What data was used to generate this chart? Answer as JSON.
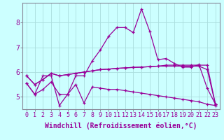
{
  "x_labels": [
    0,
    1,
    2,
    3,
    4,
    5,
    6,
    7,
    8,
    9,
    10,
    11,
    12,
    13,
    14,
    15,
    16,
    17,
    18,
    19,
    20,
    21,
    22,
    23
  ],
  "line1": [
    5.55,
    5.1,
    5.85,
    5.85,
    4.65,
    5.1,
    5.85,
    5.85,
    6.45,
    6.9,
    7.45,
    7.8,
    7.8,
    7.6,
    8.55,
    7.65,
    6.5,
    6.55,
    6.35,
    6.2,
    6.2,
    6.3,
    5.35,
    4.7
  ],
  "line2": [
    5.85,
    5.5,
    5.7,
    5.95,
    5.85,
    5.9,
    5.95,
    6.0,
    6.05,
    6.1,
    6.12,
    6.15,
    6.17,
    6.19,
    6.2,
    6.22,
    6.24,
    6.24,
    6.24,
    6.24,
    6.24,
    6.24,
    6.1,
    4.7
  ],
  "line3": [
    5.85,
    5.5,
    5.7,
    5.95,
    5.85,
    5.9,
    5.95,
    6.0,
    6.05,
    6.1,
    6.12,
    6.15,
    6.17,
    6.19,
    6.2,
    6.22,
    6.24,
    6.28,
    6.28,
    6.28,
    6.28,
    6.28,
    6.28,
    4.7
  ],
  "line4": [
    5.55,
    5.1,
    5.3,
    5.6,
    5.1,
    5.1,
    5.5,
    4.75,
    5.4,
    5.35,
    5.3,
    5.3,
    5.25,
    5.2,
    5.15,
    5.1,
    5.05,
    5.0,
    4.95,
    4.9,
    4.85,
    4.8,
    4.7,
    4.65
  ],
  "line_color": "#990099",
  "bg_color": "#ccffff",
  "grid_color": "#aadddd",
  "ylim": [
    4.5,
    8.8
  ],
  "yticks": [
    5,
    6,
    7,
    8
  ],
  "xlabel": "Windchill (Refroidissement éolien,°C)",
  "xlabel_fontsize": 7,
  "tick_fontsize": 6,
  "marker_size": 3.5,
  "linewidth": 0.9
}
